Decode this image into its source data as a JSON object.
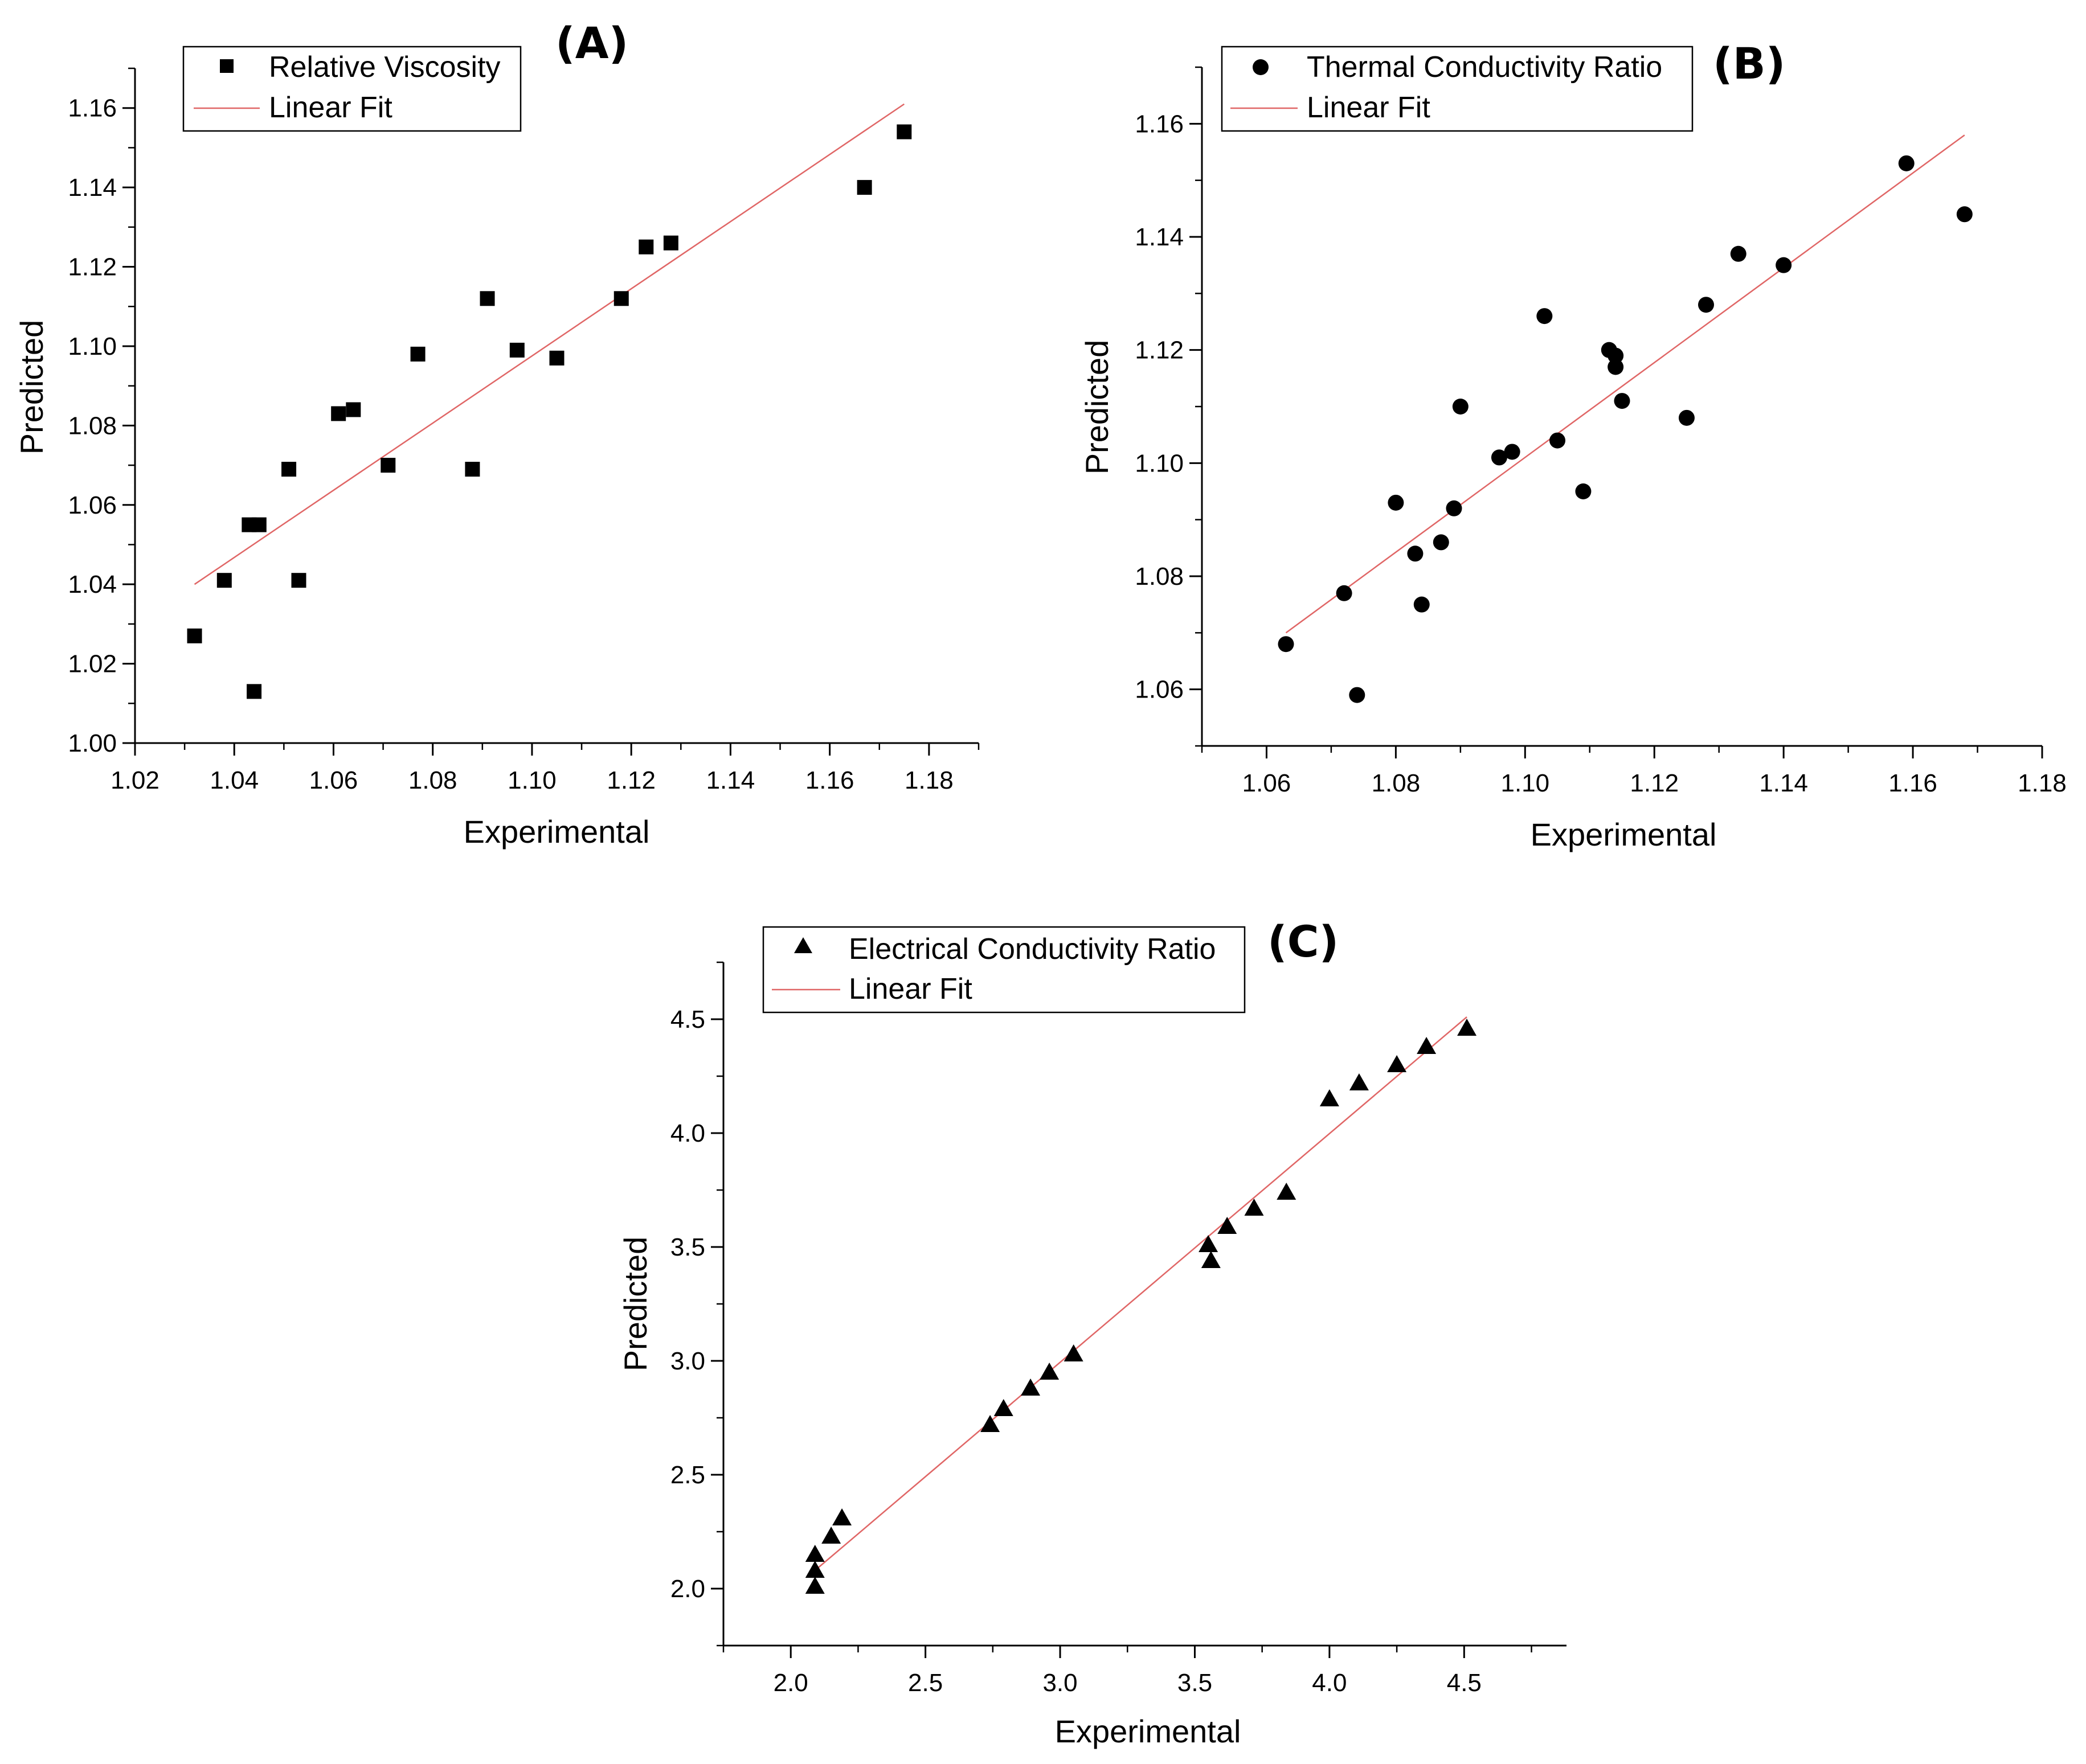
{
  "chart_data": [
    {
      "panel_label": "(A)",
      "type": "scatter",
      "marker": "square",
      "xlabel": "Experimental",
      "ylabel": "Predicted",
      "xlim": [
        1.02,
        1.19
      ],
      "ylim": [
        1.0,
        1.17
      ],
      "xticks": [
        "1.02",
        "1.04",
        "1.06",
        "1.08",
        "1.10",
        "1.12",
        "1.14",
        "1.16",
        "1.18"
      ],
      "yticks": [
        "1.00",
        "1.02",
        "1.04",
        "1.06",
        "1.08",
        "1.10",
        "1.12",
        "1.14",
        "1.16"
      ],
      "legend": {
        "series": "Relative Viscosity",
        "fit": "Linear Fit",
        "position": "top-left"
      },
      "fit_line": {
        "x": [
          1.032,
          1.175
        ],
        "y": [
          1.04,
          1.161
        ]
      },
      "points": {
        "x": [
          1.032,
          1.038,
          1.043,
          1.044,
          1.045,
          1.051,
          1.053,
          1.061,
          1.064,
          1.071,
          1.077,
          1.088,
          1.091,
          1.097,
          1.105,
          1.118,
          1.123,
          1.128,
          1.167,
          1.175
        ],
        "y": [
          1.027,
          1.041,
          1.055,
          1.013,
          1.055,
          1.069,
          1.041,
          1.083,
          1.084,
          1.07,
          1.098,
          1.069,
          1.112,
          1.099,
          1.097,
          1.112,
          1.125,
          1.126,
          1.14,
          1.154
        ]
      }
    },
    {
      "panel_label": "(B)",
      "type": "scatter",
      "marker": "circle",
      "xlabel": "Experimental",
      "ylabel": "Predicted",
      "xlim": [
        1.05,
        1.18
      ],
      "ylim": [
        1.05,
        1.17
      ],
      "xticks": [
        "1.06",
        "1.08",
        "1.10",
        "1.12",
        "1.14",
        "1.16",
        "1.18"
      ],
      "yticks": [
        "1.06",
        "1.08",
        "1.10",
        "1.12",
        "1.14",
        "1.16"
      ],
      "legend": {
        "series": "Thermal Conductivity Ratio",
        "fit": "Linear Fit",
        "position": "top-left"
      },
      "fit_line": {
        "x": [
          1.063,
          1.168
        ],
        "y": [
          1.07,
          1.158
        ]
      },
      "points": {
        "x": [
          1.063,
          1.072,
          1.074,
          1.08,
          1.083,
          1.084,
          1.087,
          1.089,
          1.09,
          1.096,
          1.098,
          1.103,
          1.105,
          1.109,
          1.113,
          1.114,
          1.114,
          1.115,
          1.125,
          1.128,
          1.133,
          1.14,
          1.159,
          1.168
        ],
        "y": [
          1.068,
          1.077,
          1.059,
          1.093,
          1.084,
          1.075,
          1.086,
          1.092,
          1.11,
          1.101,
          1.102,
          1.126,
          1.104,
          1.095,
          1.12,
          1.119,
          1.117,
          1.111,
          1.108,
          1.128,
          1.137,
          1.135,
          1.153,
          1.144
        ]
      }
    },
    {
      "panel_label": "(C)",
      "type": "scatter",
      "marker": "triangle",
      "xlabel": "Experimental",
      "ylabel": "Predicted",
      "xlim": [
        1.75,
        4.88
      ],
      "ylim": [
        1.75,
        4.75
      ],
      "xticks": [
        "2.0",
        "2.5",
        "3.0",
        "3.5",
        "4.0",
        "4.5"
      ],
      "yticks": [
        "2.0",
        "2.5",
        "3.0",
        "3.5",
        "4.0",
        "4.5"
      ],
      "legend": {
        "series": "Electrical Conductivity Ratio",
        "fit": "Linear Fit",
        "position": "top-left"
      },
      "fit_line": {
        "x": [
          2.09,
          4.51
        ],
        "y": [
          2.08,
          4.51
        ]
      },
      "points": {
        "x": [
          2.09,
          2.09,
          2.09,
          2.15,
          2.19,
          2.74,
          2.79,
          2.89,
          2.96,
          3.05,
          3.55,
          3.56,
          3.62,
          3.72,
          3.84,
          4.0,
          4.11,
          4.25,
          4.36,
          4.51
        ],
        "y": [
          2.01,
          2.08,
          2.15,
          2.23,
          2.31,
          2.72,
          2.79,
          2.88,
          2.95,
          3.03,
          3.51,
          3.44,
          3.59,
          3.67,
          3.74,
          4.15,
          4.22,
          4.3,
          4.38,
          4.46
        ]
      }
    }
  ]
}
